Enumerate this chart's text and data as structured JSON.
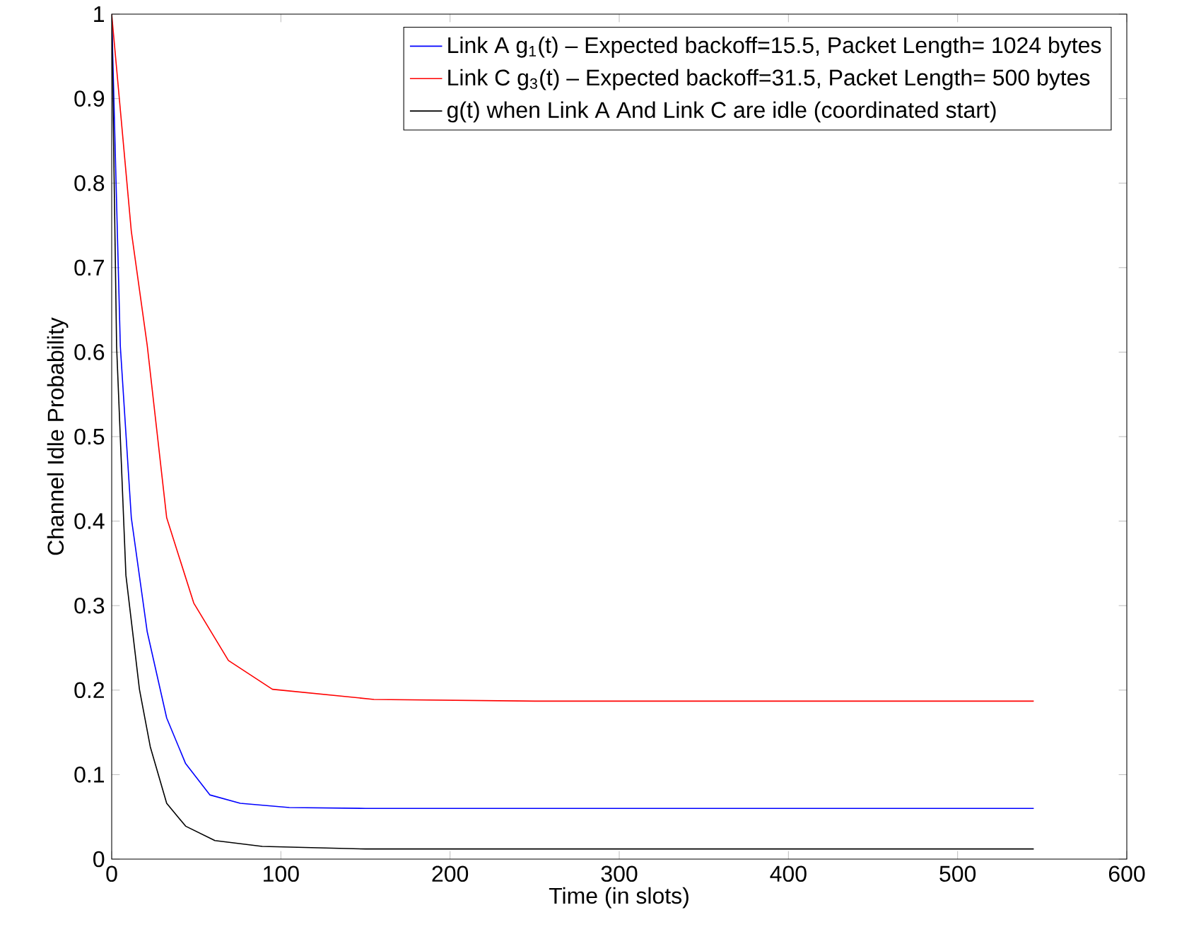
{
  "chart_data": {
    "type": "line",
    "xlabel": "Time (in slots)",
    "ylabel": "Channel Idle Probability",
    "xlim": [
      0,
      600
    ],
    "xticks": [
      0,
      100,
      200,
      300,
      400,
      500,
      600
    ],
    "ylim": [
      0,
      1
    ],
    "yticks": [
      0,
      0.1,
      0.2,
      0.3,
      0.4,
      0.5,
      0.6,
      0.7,
      0.8,
      0.9,
      1
    ],
    "grid": false,
    "legend": "top right",
    "marker": "none",
    "line_style": "solid",
    "series": [
      {
        "name": "Link A g$_{1}$(t) – Expected backoff=15.5, Packet Length= 1024 bytes",
        "color": "#0000ff",
        "x": [
          0,
          5.1,
          11.6,
          21,
          32.5,
          43.7,
          58,
          76,
          105,
          150,
          250,
          400,
          545
        ],
        "values": [
          1,
          0.607,
          0.404,
          0.269,
          0.167,
          0.113,
          0.076,
          0.066,
          0.061,
          0.06,
          0.06,
          0.06,
          0.06
        ]
      },
      {
        "name": "Link C g$_{3}$(t) – Expected backoff=31.5, Packet Length= 500 bytes",
        "color": "#ff0000",
        "x": [
          0,
          11.6,
          21,
          32.5,
          48.5,
          69,
          95,
          155,
          250,
          400,
          545
        ],
        "values": [
          1,
          0.743,
          0.608,
          0.404,
          0.303,
          0.235,
          0.201,
          0.189,
          0.187,
          0.187,
          0.187
        ]
      },
      {
        "name": "g(t) when Link A And Link C are idle (coordinated start)",
        "color": "#000000",
        "x": [
          0,
          2.9,
          8.4,
          16.4,
          22.8,
          32.5,
          43.7,
          61,
          89,
          150,
          300,
          545
        ],
        "values": [
          1,
          0.607,
          0.336,
          0.201,
          0.133,
          0.066,
          0.039,
          0.022,
          0.015,
          0.012,
          0.012,
          0.012
        ]
      }
    ]
  }
}
